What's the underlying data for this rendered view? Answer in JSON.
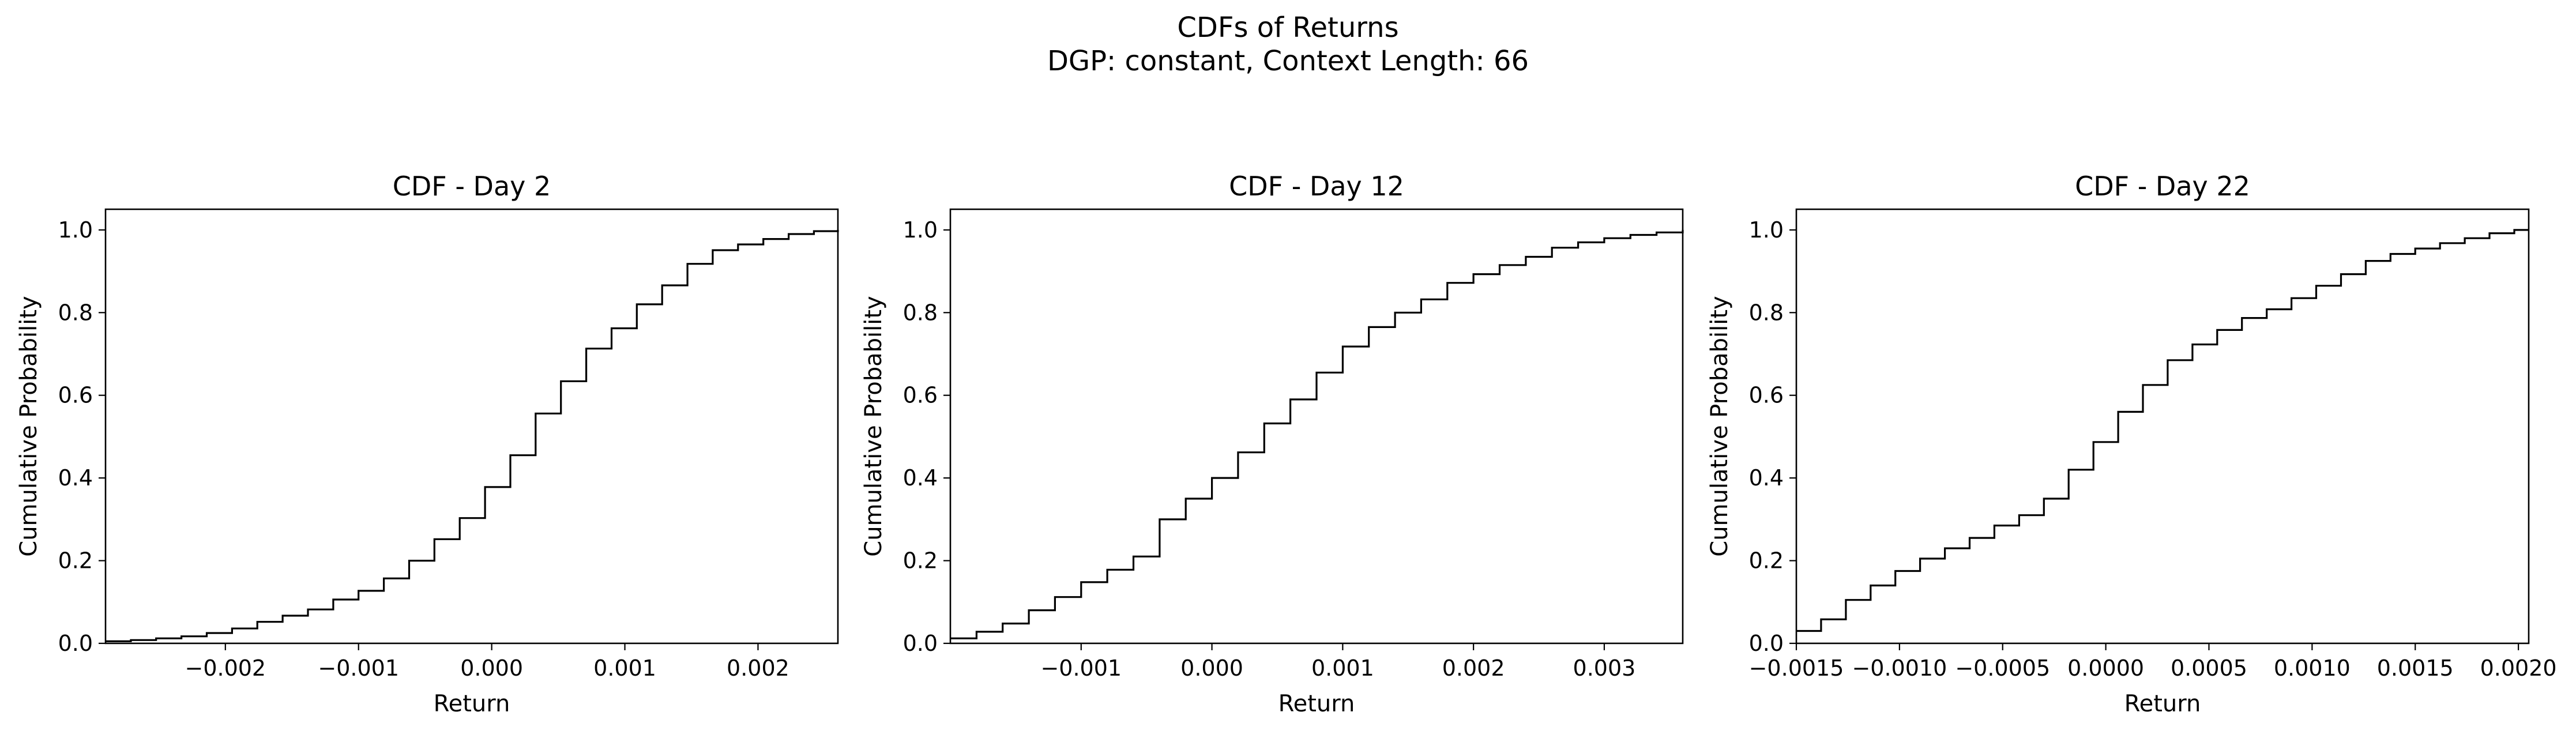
{
  "suptitle": {
    "line1": "CDFs of Returns",
    "line2": "DGP: constant, Context Length: 66"
  },
  "chart_data": [
    {
      "type": "line",
      "title": "CDF - Day 2",
      "xlabel": "Return",
      "ylabel": "Cumulative Probability",
      "xlim": [
        -0.0029,
        0.0026
      ],
      "ylim": [
        0.0,
        1.05
      ],
      "xticks": [
        -0.002,
        -0.001,
        0.0,
        0.001,
        0.002
      ],
      "xticklabels": [
        "−0.002",
        "−0.001",
        "0.000",
        "0.001",
        "0.002"
      ],
      "yticks": [
        0.0,
        0.2,
        0.4,
        0.6,
        0.8,
        1.0
      ],
      "yticklabels": [
        "0.0",
        "0.2",
        "0.4",
        "0.6",
        "0.8",
        "1.0"
      ],
      "grid": false,
      "step": true,
      "color": "#000000",
      "x": [
        -0.0029,
        -0.00271,
        -0.00252,
        -0.00233,
        -0.00214,
        -0.00195,
        -0.00176,
        -0.00157,
        -0.00138,
        -0.00119,
        -0.001,
        -0.00081,
        -0.00062,
        -0.00043,
        -0.00024,
        -5e-05,
        0.00014,
        0.00033,
        0.00052,
        0.00071,
        0.0009,
        0.00109,
        0.00128,
        0.00147,
        0.00166,
        0.00185,
        0.00204,
        0.00223,
        0.00242,
        0.0026
      ],
      "y": [
        0.005,
        0.008,
        0.012,
        0.017,
        0.025,
        0.036,
        0.052,
        0.067,
        0.082,
        0.106,
        0.127,
        0.157,
        0.2,
        0.252,
        0.303,
        0.378,
        0.455,
        0.556,
        0.634,
        0.713,
        0.762,
        0.82,
        0.866,
        0.918,
        0.951,
        0.965,
        0.978,
        0.99,
        0.997,
        1.0
      ]
    },
    {
      "type": "line",
      "title": "CDF - Day 12",
      "xlabel": "Return",
      "ylabel": "Cumulative Probability",
      "xlim": [
        -0.002,
        0.0036
      ],
      "ylim": [
        0.0,
        1.05
      ],
      "xticks": [
        -0.001,
        0.0,
        0.001,
        0.002,
        0.003
      ],
      "xticklabels": [
        "−0.001",
        "0.000",
        "0.001",
        "0.002",
        "0.003"
      ],
      "yticks": [
        0.0,
        0.2,
        0.4,
        0.6,
        0.8,
        1.0
      ],
      "yticklabels": [
        "0.0",
        "0.2",
        "0.4",
        "0.6",
        "0.8",
        "1.0"
      ],
      "grid": false,
      "step": true,
      "color": "#000000",
      "x": [
        -0.002,
        -0.0018,
        -0.0016,
        -0.0014,
        -0.0012,
        -0.001,
        -0.0008,
        -0.0006,
        -0.0004,
        -0.0002,
        0.0,
        0.0002,
        0.0004,
        0.0006,
        0.0008,
        0.001,
        0.0012,
        0.0014,
        0.0016,
        0.0018,
        0.002,
        0.0022,
        0.0024,
        0.0026,
        0.0028,
        0.003,
        0.0032,
        0.0034,
        0.0036
      ],
      "y": [
        0.012,
        0.028,
        0.048,
        0.08,
        0.112,
        0.148,
        0.178,
        0.21,
        0.3,
        0.35,
        0.4,
        0.462,
        0.532,
        0.59,
        0.655,
        0.718,
        0.765,
        0.8,
        0.832,
        0.872,
        0.893,
        0.915,
        0.935,
        0.957,
        0.97,
        0.98,
        0.988,
        0.994,
        1.0
      ]
    },
    {
      "type": "line",
      "title": "CDF - Day 22",
      "xlabel": "Return",
      "ylabel": "Cumulative Probability",
      "xlim": [
        -0.0015,
        0.00205
      ],
      "ylim": [
        0.0,
        1.05
      ],
      "xticks": [
        -0.0015,
        -0.001,
        -0.0005,
        0.0,
        0.0005,
        0.001,
        0.0015,
        0.002
      ],
      "xticklabels": [
        "−0.0015",
        "−0.0010",
        "−0.0005",
        "0.0000",
        "0.0005",
        "0.0010",
        "0.0015",
        "0.0020"
      ],
      "yticks": [
        0.0,
        0.2,
        0.4,
        0.6,
        0.8,
        1.0
      ],
      "yticklabels": [
        "0.0",
        "0.2",
        "0.4",
        "0.6",
        "0.8",
        "1.0"
      ],
      "grid": false,
      "step": true,
      "color": "#000000",
      "x": [
        -0.0015,
        -0.00138,
        -0.00126,
        -0.00114,
        -0.00102,
        -0.0009,
        -0.00078,
        -0.00066,
        -0.00054,
        -0.00042,
        -0.0003,
        -0.00018,
        -6e-05,
        6e-05,
        0.00018,
        0.0003,
        0.00042,
        0.00054,
        0.00066,
        0.00078,
        0.0009,
        0.00102,
        0.00114,
        0.00126,
        0.00138,
        0.0015,
        0.00162,
        0.00174,
        0.00186,
        0.00198,
        0.00205
      ],
      "y": [
        0.03,
        0.058,
        0.105,
        0.14,
        0.175,
        0.205,
        0.23,
        0.255,
        0.285,
        0.31,
        0.35,
        0.42,
        0.487,
        0.56,
        0.625,
        0.685,
        0.723,
        0.758,
        0.787,
        0.808,
        0.835,
        0.865,
        0.893,
        0.925,
        0.942,
        0.955,
        0.968,
        0.98,
        0.992,
        1.0,
        1.0
      ]
    }
  ]
}
